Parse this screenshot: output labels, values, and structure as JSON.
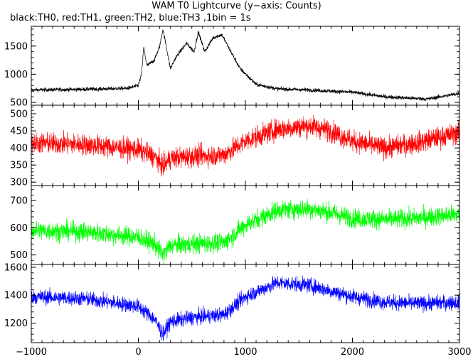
{
  "chart_data": {
    "type": "line",
    "title": "WAM T0 Lightcurve (y−axis: Counts)",
    "subtitle": "black:TH0, red:TH1, green:TH2, blue:TH3 ,1bin = 1s",
    "xlim": [
      -1000,
      3000
    ],
    "x_ticks": [
      -1000,
      0,
      1000,
      2000,
      3000
    ],
    "x_tick_labels": [
      "−1000",
      "0",
      "1000",
      "2000",
      "3000"
    ],
    "grid": false,
    "panels": [
      {
        "series_name": "TH0",
        "color": "#000000",
        "ylim": [
          450,
          1850
        ],
        "y_ticks": [
          500,
          1000,
          1500
        ],
        "y_tick_labels": [
          "500",
          "1000",
          "1500"
        ],
        "noise": 25,
        "profile": [
          [
            -1000,
            720
          ],
          [
            -600,
            730
          ],
          [
            -300,
            740
          ],
          [
            -100,
            750
          ],
          [
            0,
            800
          ],
          [
            30,
            1000
          ],
          [
            50,
            1480
          ],
          [
            80,
            1150
          ],
          [
            150,
            1250
          ],
          [
            200,
            1500
          ],
          [
            230,
            1800
          ],
          [
            260,
            1500
          ],
          [
            300,
            1100
          ],
          [
            350,
            1300
          ],
          [
            450,
            1550
          ],
          [
            520,
            1400
          ],
          [
            560,
            1750
          ],
          [
            620,
            1400
          ],
          [
            700,
            1650
          ],
          [
            780,
            1700
          ],
          [
            850,
            1450
          ],
          [
            950,
            1100
          ],
          [
            1100,
            820
          ],
          [
            1300,
            740
          ],
          [
            1600,
            720
          ],
          [
            2000,
            680
          ],
          [
            2300,
            600
          ],
          [
            2700,
            560
          ],
          [
            3000,
            660
          ]
        ]
      },
      {
        "series_name": "TH1",
        "color": "#ff0000",
        "ylim": [
          290,
          525
        ],
        "y_ticks": [
          300,
          350,
          400,
          450,
          500
        ],
        "y_tick_labels": [
          "300",
          "350",
          "400",
          "450",
          "500"
        ],
        "noise": 22,
        "profile": [
          [
            -1000,
            415
          ],
          [
            -500,
            410
          ],
          [
            0,
            395
          ],
          [
            150,
            375
          ],
          [
            230,
            345
          ],
          [
            300,
            370
          ],
          [
            500,
            375
          ],
          [
            800,
            380
          ],
          [
            1000,
            420
          ],
          [
            1300,
            455
          ],
          [
            1600,
            465
          ],
          [
            1800,
            450
          ],
          [
            2000,
            420
          ],
          [
            2300,
            400
          ],
          [
            2600,
            415
          ],
          [
            3000,
            445
          ]
        ]
      },
      {
        "series_name": "TH2",
        "color": "#00ff00",
        "ylim": [
          465,
          755
        ],
        "y_ticks": [
          500,
          600,
          700
        ],
        "y_tick_labels": [
          "500",
          "600",
          "700"
        ],
        "noise": 25,
        "profile": [
          [
            -1000,
            590
          ],
          [
            -500,
            585
          ],
          [
            0,
            565
          ],
          [
            150,
            540
          ],
          [
            230,
            500
          ],
          [
            300,
            535
          ],
          [
            500,
            540
          ],
          [
            800,
            545
          ],
          [
            1000,
            610
          ],
          [
            1300,
            665
          ],
          [
            1600,
            670
          ],
          [
            1800,
            655
          ],
          [
            2000,
            635
          ],
          [
            2300,
            630
          ],
          [
            2600,
            635
          ],
          [
            3000,
            650
          ]
        ]
      },
      {
        "series_name": "TH3",
        "color": "#0000ff",
        "ylim": [
          1060,
          1620
        ],
        "y_ticks": [
          1200,
          1400,
          1600
        ],
        "y_tick_labels": [
          "1200",
          "1400",
          "1600"
        ],
        "noise": 38,
        "profile": [
          [
            -1000,
            1390
          ],
          [
            -500,
            1375
          ],
          [
            0,
            1320
          ],
          [
            150,
            1230
          ],
          [
            230,
            1120
          ],
          [
            300,
            1210
          ],
          [
            500,
            1240
          ],
          [
            800,
            1260
          ],
          [
            1000,
            1390
          ],
          [
            1300,
            1490
          ],
          [
            1600,
            1470
          ],
          [
            1800,
            1430
          ],
          [
            2000,
            1390
          ],
          [
            2300,
            1350
          ],
          [
            2600,
            1340
          ],
          [
            3000,
            1350
          ]
        ]
      }
    ]
  }
}
